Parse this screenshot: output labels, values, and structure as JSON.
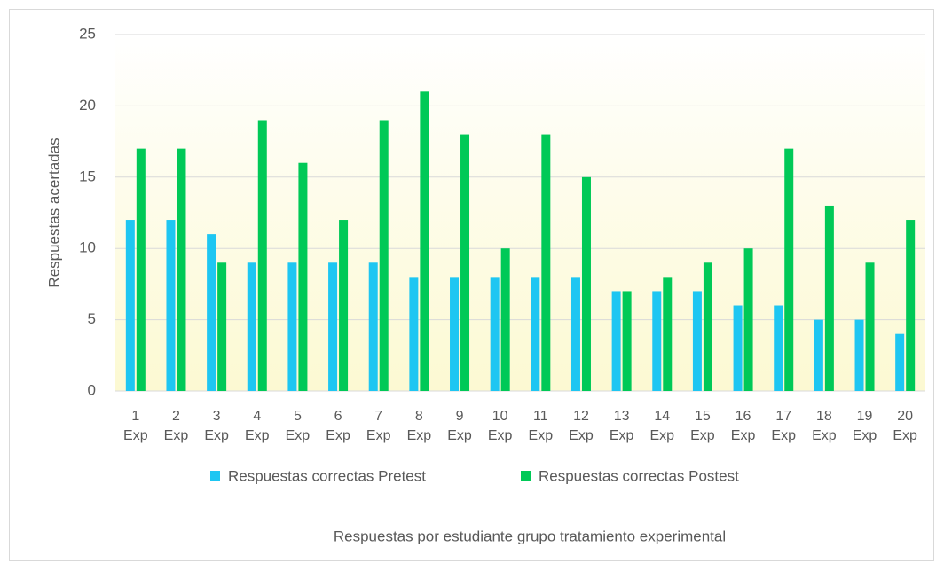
{
  "chart_data": {
    "type": "bar",
    "x_label": "Respuestas por estudiante grupo tratamiento experimental",
    "y_label": "Respuestas acertadas",
    "categories": [
      "1 Exp",
      "2 Exp",
      "3 Exp",
      "4 Exp",
      "5 Exp",
      "6 Exp",
      "7 Exp",
      "8 Exp",
      "9 Exp",
      "10 Exp",
      "11 Exp",
      "12 Exp",
      "13 Exp",
      "14 Exp",
      "15 Exp",
      "16 Exp",
      "17 Exp",
      "18 Exp",
      "19 Exp",
      "20 Exp"
    ],
    "series": [
      {
        "name": "Respuestas correctas Pretest",
        "color": "#1ec6f2",
        "values": [
          12,
          12,
          11,
          9,
          9,
          9,
          9,
          8,
          8,
          8,
          8,
          8,
          7,
          7,
          7,
          6,
          6,
          5,
          5,
          4
        ]
      },
      {
        "name": "Respuestas correctas Postest",
        "color": "#00c957",
        "values": [
          17,
          17,
          9,
          19,
          16,
          12,
          19,
          21,
          18,
          10,
          18,
          15,
          7,
          8,
          9,
          10,
          17,
          13,
          9,
          12
        ]
      }
    ],
    "ylim": [
      0,
      25
    ],
    "yticks": [
      0,
      5,
      10,
      15,
      20,
      25
    ],
    "grid": true,
    "legend": "bottom"
  }
}
